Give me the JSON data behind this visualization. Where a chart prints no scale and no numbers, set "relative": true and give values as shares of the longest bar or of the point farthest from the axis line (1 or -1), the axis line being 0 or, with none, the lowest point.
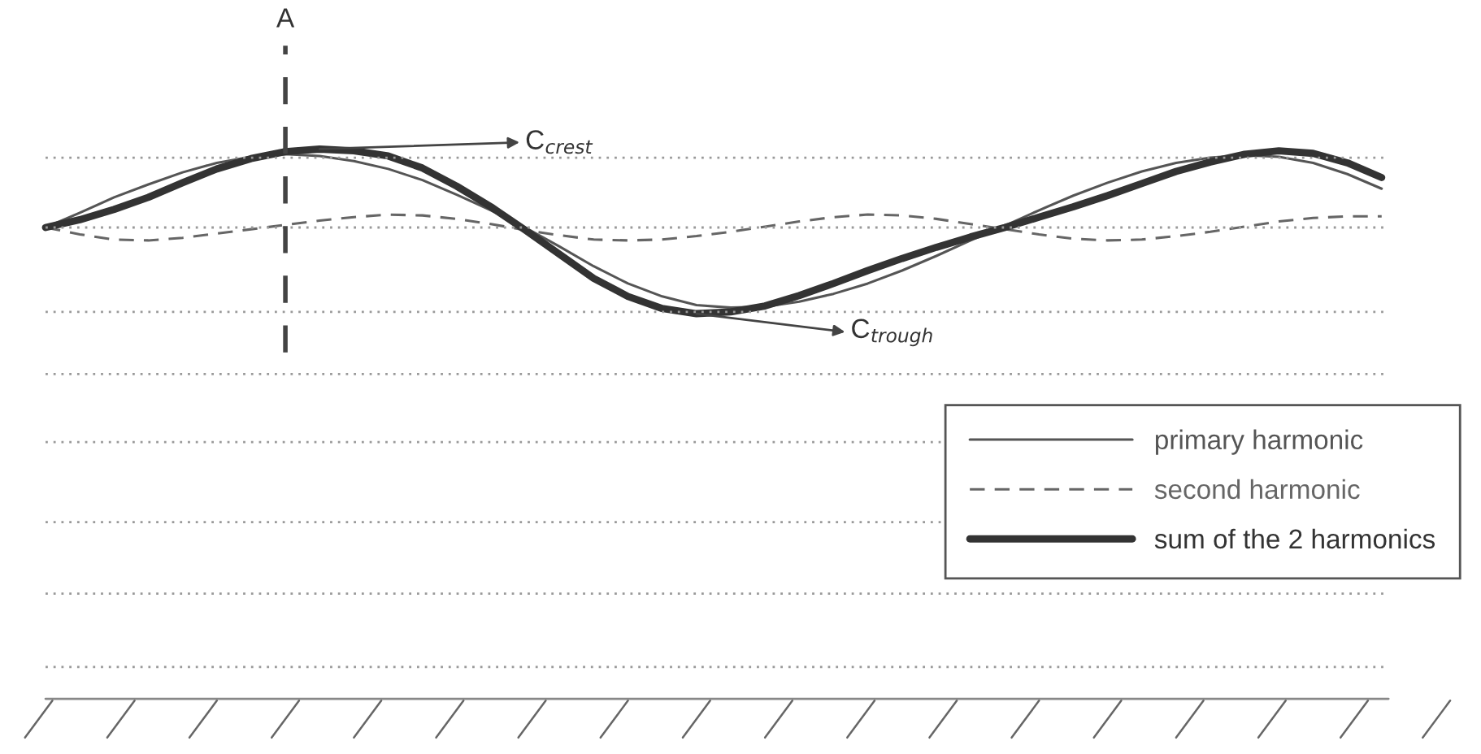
{
  "chart_data": {
    "type": "line",
    "relative": true,
    "categories": [
      null,
      null,
      null,
      null,
      null,
      null,
      null,
      null,
      null,
      null,
      null,
      null,
      null,
      null,
      null,
      null,
      null,
      null,
      null,
      null,
      null,
      null,
      null,
      null,
      null,
      null,
      null,
      null,
      null,
      null,
      null,
      null,
      null,
      null,
      null,
      null,
      null,
      null,
      null,
      null
    ],
    "series": [
      {
        "name": "primary harmonic",
        "color": "#555555",
        "line_style": "solid",
        "values": [
          0.0,
          0.17,
          0.35,
          0.5,
          0.64,
          0.75,
          0.82,
          0.85,
          0.83,
          0.77,
          0.68,
          0.55,
          0.38,
          0.2,
          0.0,
          -0.22,
          -0.45,
          -0.65,
          -0.8,
          -0.9,
          -0.93,
          -0.92,
          -0.86,
          -0.77,
          -0.65,
          -0.5,
          -0.33,
          -0.15,
          0.02,
          0.2,
          0.37,
          0.52,
          0.65,
          0.75,
          0.81,
          0.84,
          0.82,
          0.75,
          0.62,
          0.45
        ]
      },
      {
        "name": "second harmonic",
        "color": "#666666",
        "line_style": "dashed",
        "values": [
          0.0,
          -0.08,
          -0.14,
          -0.15,
          -0.12,
          -0.07,
          -0.02,
          0.03,
          0.08,
          0.12,
          0.15,
          0.14,
          0.1,
          0.04,
          -0.03,
          -0.09,
          -0.14,
          -0.15,
          -0.14,
          -0.1,
          -0.05,
          0.01,
          0.07,
          0.12,
          0.15,
          0.14,
          0.1,
          0.04,
          -0.02,
          -0.08,
          -0.13,
          -0.15,
          -0.14,
          -0.1,
          -0.05,
          0.01,
          0.07,
          0.11,
          0.13,
          0.13
        ]
      },
      {
        "name": "sum of the 2 harmonics",
        "color": "#333333",
        "line_style": "solid",
        "values": [
          0.0,
          0.09,
          0.21,
          0.35,
          0.52,
          0.68,
          0.8,
          0.88,
          0.91,
          0.89,
          0.83,
          0.69,
          0.48,
          0.24,
          -0.03,
          -0.31,
          -0.59,
          -0.8,
          -0.94,
          -1.0,
          -0.98,
          -0.91,
          -0.79,
          -0.65,
          -0.5,
          -0.36,
          -0.23,
          -0.11,
          0.0,
          0.12,
          0.24,
          0.37,
          0.51,
          0.65,
          0.76,
          0.85,
          0.89,
          0.86,
          0.75,
          0.58
        ]
      }
    ],
    "ref_lines": [
      {
        "axis": "y",
        "value": 0.81,
        "color": "#999999",
        "line_style": "dotted"
      },
      {
        "axis": "y",
        "value": 0,
        "color": "#999999",
        "line_style": "dotted"
      },
      {
        "axis": "y",
        "value": -0.98,
        "color": "#999999",
        "line_style": "dotted"
      },
      {
        "axis": "y",
        "value": -1.7,
        "color": "#999999",
        "line_style": "dotted"
      },
      {
        "axis": "y",
        "value": -2.49,
        "color": "#999999",
        "line_style": "dotted"
      },
      {
        "axis": "y",
        "value": -3.42,
        "color": "#999999",
        "line_style": "dotted"
      },
      {
        "axis": "y",
        "value": -4.25,
        "color": "#999999",
        "line_style": "dotted"
      },
      {
        "axis": "y",
        "value": -5.1,
        "color": "#999999",
        "line_style": "dotted"
      },
      {
        "axis": "y",
        "value": -5.47,
        "color": "#888888",
        "line_style": "solid"
      }
    ],
    "annotations": [
      "A",
      "C$_{crest}$",
      "C$_{trough}$"
    ],
    "legend": "bottom right"
  }
}
